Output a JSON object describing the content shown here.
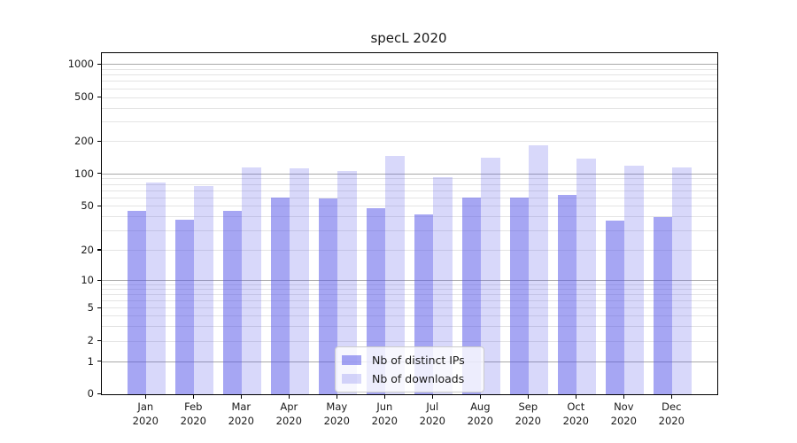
{
  "chart_data": {
    "type": "bar",
    "title": "specL 2020",
    "categories": [
      "Jan 2020",
      "Feb 2020",
      "Mar 2020",
      "Apr 2020",
      "May 2020",
      "Jun 2020",
      "Jul 2020",
      "Aug 2020",
      "Sep 2020",
      "Oct 2020",
      "Nov 2020",
      "Dec 2020"
    ],
    "series": [
      {
        "name": "Nb of distinct IPs",
        "color": "#5555e8",
        "alpha": 0.52,
        "swatch_hex": "#a9a9f2",
        "values": [
          45,
          38,
          45,
          60,
          59,
          48,
          42,
          60,
          60,
          64,
          37,
          40
        ]
      },
      {
        "name": "Nb of downloads",
        "color": "#5555e8",
        "alpha": 0.23,
        "swatch_hex": "#d9d9f8",
        "values": [
          83,
          77,
          115,
          112,
          107,
          148,
          93,
          141,
          183,
          140,
          120,
          115
        ]
      }
    ],
    "yaxis": {
      "scale": "log-like with 0 baseline (compressed lower decades)",
      "ticks": [
        0,
        1,
        2,
        5,
        10,
        20,
        50,
        100,
        200,
        500,
        1000
      ],
      "major_gridlines": [
        1,
        10,
        100,
        1000
      ],
      "minor_gridlines": [
        3,
        4,
        6,
        7,
        8,
        9,
        30,
        40,
        60,
        70,
        80,
        90,
        300,
        400,
        600,
        700,
        800,
        900
      ],
      "ylim_top": 1266
    },
    "xlabel": "",
    "ylabel": "",
    "grid": true,
    "legend": {
      "position": "lower center"
    },
    "colors": {
      "background": "#ffffff",
      "axis_spine": "#000000",
      "text": "#1a1a1a",
      "major_grid": "#a9a9a9",
      "minor_grid": "#e4e4e4"
    }
  }
}
